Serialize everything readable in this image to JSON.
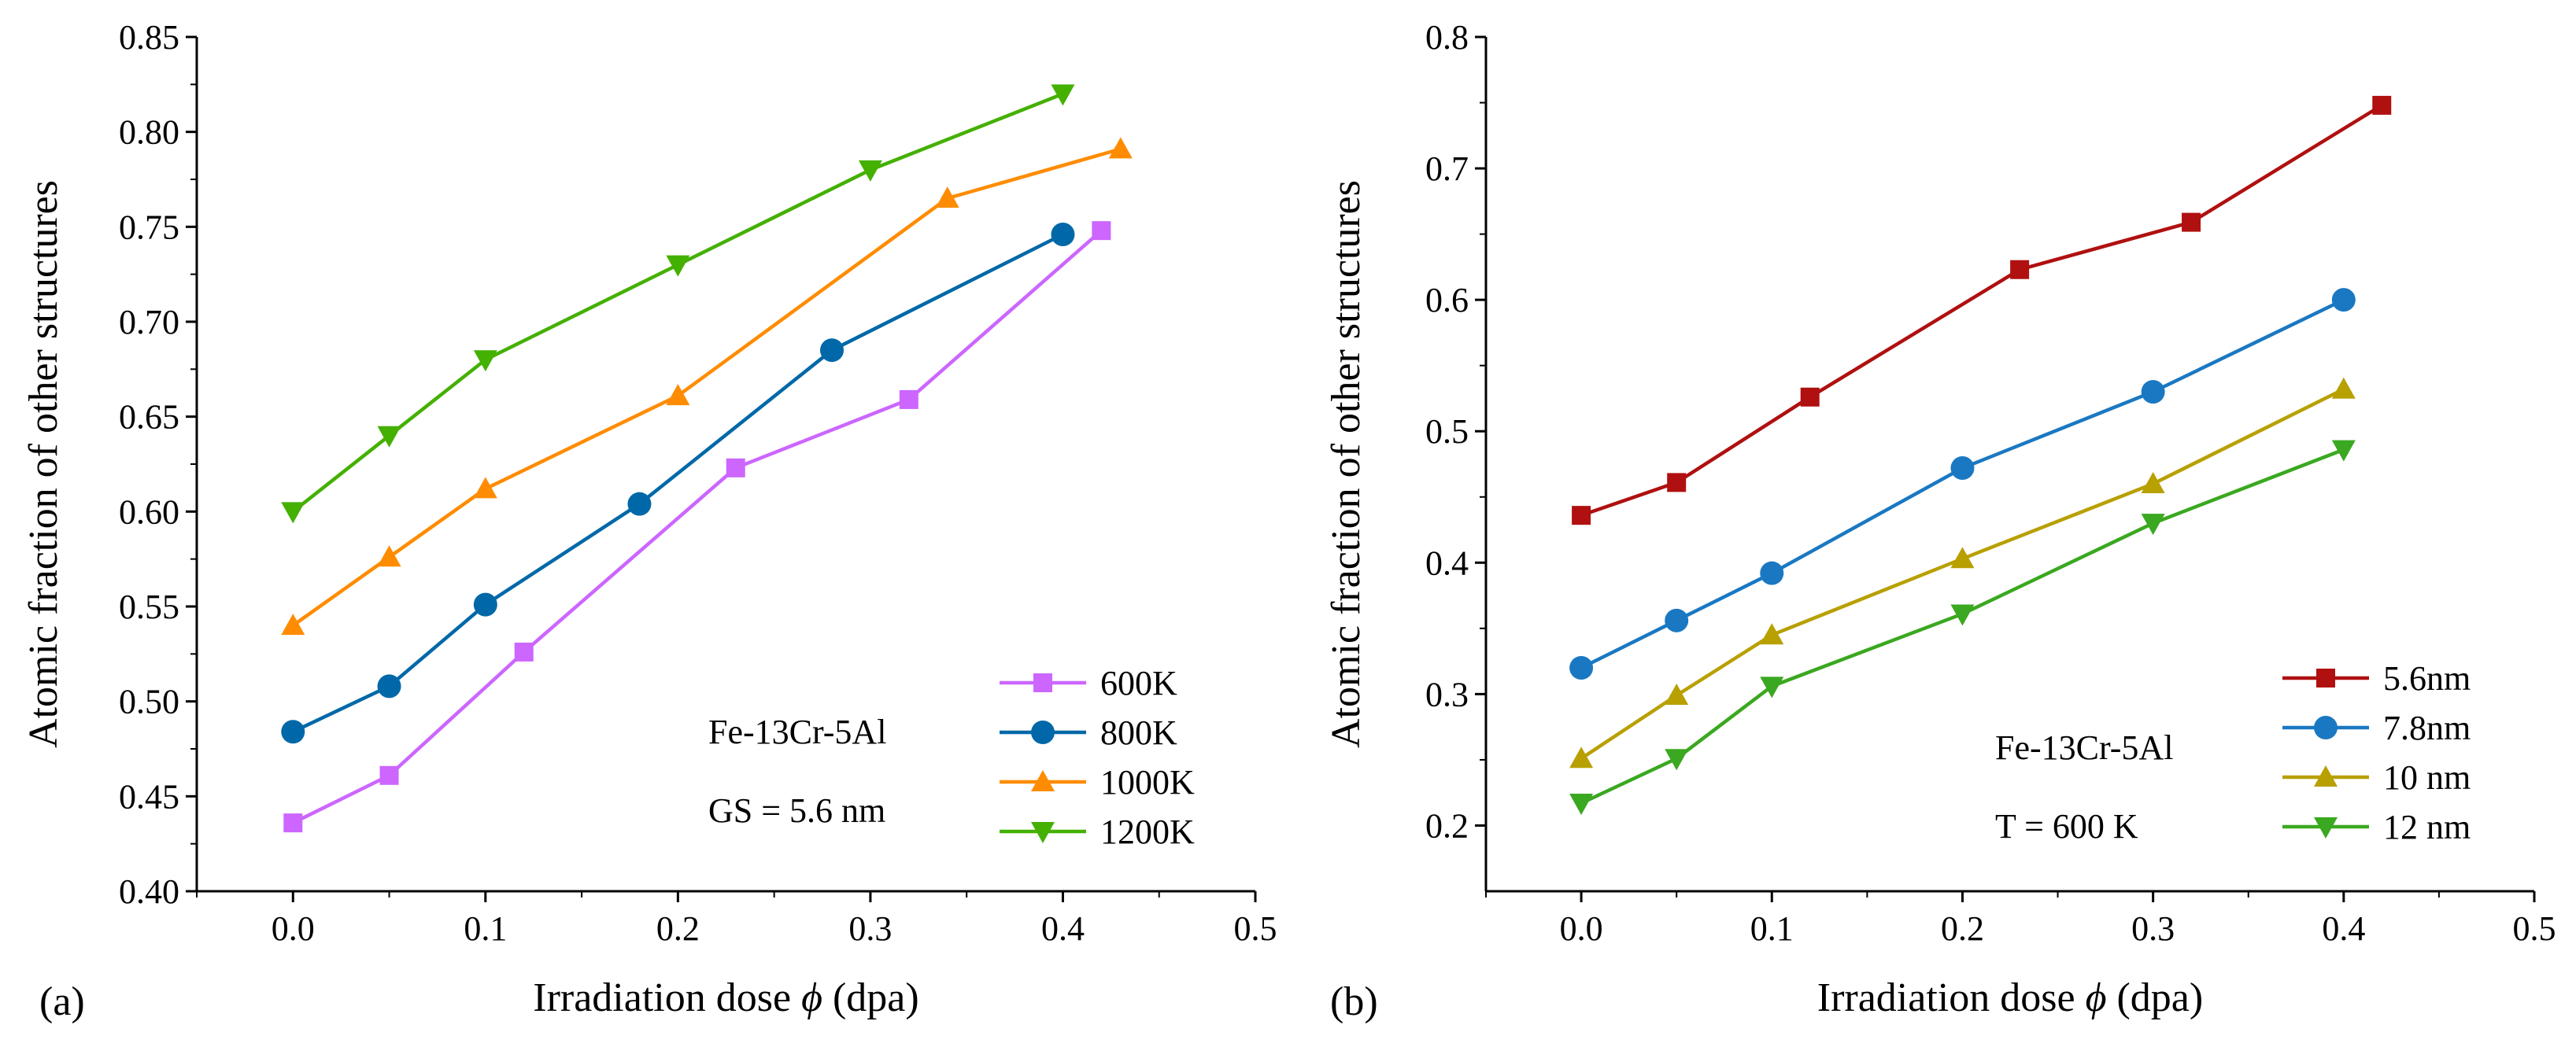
{
  "chart_data": [
    {
      "type": "line",
      "panel_label": "(a)",
      "xlabel": "Irradiation  dose",
      "xlabel_symbol": "ϕ",
      "xlabel_unit": " (dpa)",
      "ylabel": "Atomic  fraction  of  other  structures",
      "xlim": [
        -0.05,
        0.5
      ],
      "ylim": [
        0.4,
        0.85
      ],
      "xticks": [
        0.0,
        0.1,
        0.2,
        0.3,
        0.4,
        0.5
      ],
      "xtick_labels": [
        "0.0",
        "0.1",
        "0.2",
        "0.3",
        "0.4",
        "0.5"
      ],
      "yticks": [
        0.4,
        0.45,
        0.5,
        0.55,
        0.6,
        0.65,
        0.7,
        0.75,
        0.8,
        0.85
      ],
      "ytick_labels": [
        "0.40",
        "0.45",
        "0.50",
        "0.55",
        "0.60",
        "0.65",
        "0.70",
        "0.75",
        "0.80",
        "0.85"
      ],
      "annotations": [
        "Fe-13Cr-5Al",
        "GS = 5.6 nm"
      ],
      "legend_position": "bottom-right",
      "series": [
        {
          "name": "600K",
          "color": "#cc66ff",
          "marker": "square",
          "x": [
            0.0,
            0.05,
            0.12,
            0.23,
            0.32,
            0.42
          ],
          "y": [
            0.436,
            0.461,
            0.526,
            0.623,
            0.659,
            0.748
          ]
        },
        {
          "name": "800K",
          "color": "#0068a8",
          "marker": "circle",
          "x": [
            0.0,
            0.05,
            0.1,
            0.18,
            0.28,
            0.4
          ],
          "y": [
            0.484,
            0.508,
            0.551,
            0.604,
            0.685,
            0.746
          ]
        },
        {
          "name": "1000K",
          "color": "#ff8c00",
          "marker": "triangle-up",
          "x": [
            0.0,
            0.05,
            0.1,
            0.2,
            0.34,
            0.43
          ],
          "y": [
            0.54,
            0.576,
            0.612,
            0.661,
            0.765,
            0.791
          ]
        },
        {
          "name": "1200K",
          "color": "#44b000",
          "marker": "triangle-down",
          "x": [
            0.0,
            0.05,
            0.1,
            0.2,
            0.3,
            0.4
          ],
          "y": [
            0.6,
            0.64,
            0.68,
            0.73,
            0.78,
            0.82
          ]
        }
      ]
    },
    {
      "type": "line",
      "panel_label": "(b)",
      "xlabel": "Irradiation  dose",
      "xlabel_symbol": "ϕ",
      "xlabel_unit": " (dpa)",
      "ylabel": "Atomic  fraction  of  other  structures",
      "xlim": [
        -0.05,
        0.5
      ],
      "ylim": [
        0.15,
        0.8
      ],
      "xticks": [
        0.0,
        0.1,
        0.2,
        0.3,
        0.4,
        0.5
      ],
      "xtick_labels": [
        "0.0",
        "0.1",
        "0.2",
        "0.3",
        "0.4",
        "0.5"
      ],
      "yticks": [
        0.2,
        0.3,
        0.4,
        0.5,
        0.6,
        0.7,
        0.8
      ],
      "ytick_labels": [
        "0.2",
        "0.3",
        "0.4",
        "0.5",
        "0.6",
        "0.7",
        "0.8"
      ],
      "annotations": [
        "Fe-13Cr-5Al",
        "T   =  600 K"
      ],
      "legend_position": "bottom-right",
      "series": [
        {
          "name": "5.6nm",
          "color": "#b01010",
          "marker": "square",
          "x": [
            0.0,
            0.05,
            0.12,
            0.23,
            0.32,
            0.42
          ],
          "y": [
            0.436,
            0.461,
            0.526,
            0.623,
            0.659,
            0.748
          ]
        },
        {
          "name": "7.8nm",
          "color": "#1a78c2",
          "marker": "circle",
          "x": [
            0.0,
            0.05,
            0.1,
            0.2,
            0.3,
            0.4
          ],
          "y": [
            0.32,
            0.356,
            0.392,
            0.472,
            0.53,
            0.6
          ]
        },
        {
          "name": "10 nm",
          "color": "#b8a000",
          "marker": "triangle-up",
          "x": [
            0.0,
            0.05,
            0.1,
            0.2,
            0.3,
            0.4
          ],
          "y": [
            0.251,
            0.299,
            0.345,
            0.403,
            0.46,
            0.532
          ]
        },
        {
          "name": "12 nm",
          "color": "#3aa820",
          "marker": "triangle-down",
          "x": [
            0.0,
            0.05,
            0.1,
            0.2,
            0.3,
            0.4
          ],
          "y": [
            0.217,
            0.251,
            0.306,
            0.361,
            0.43,
            0.486
          ]
        }
      ]
    }
  ]
}
